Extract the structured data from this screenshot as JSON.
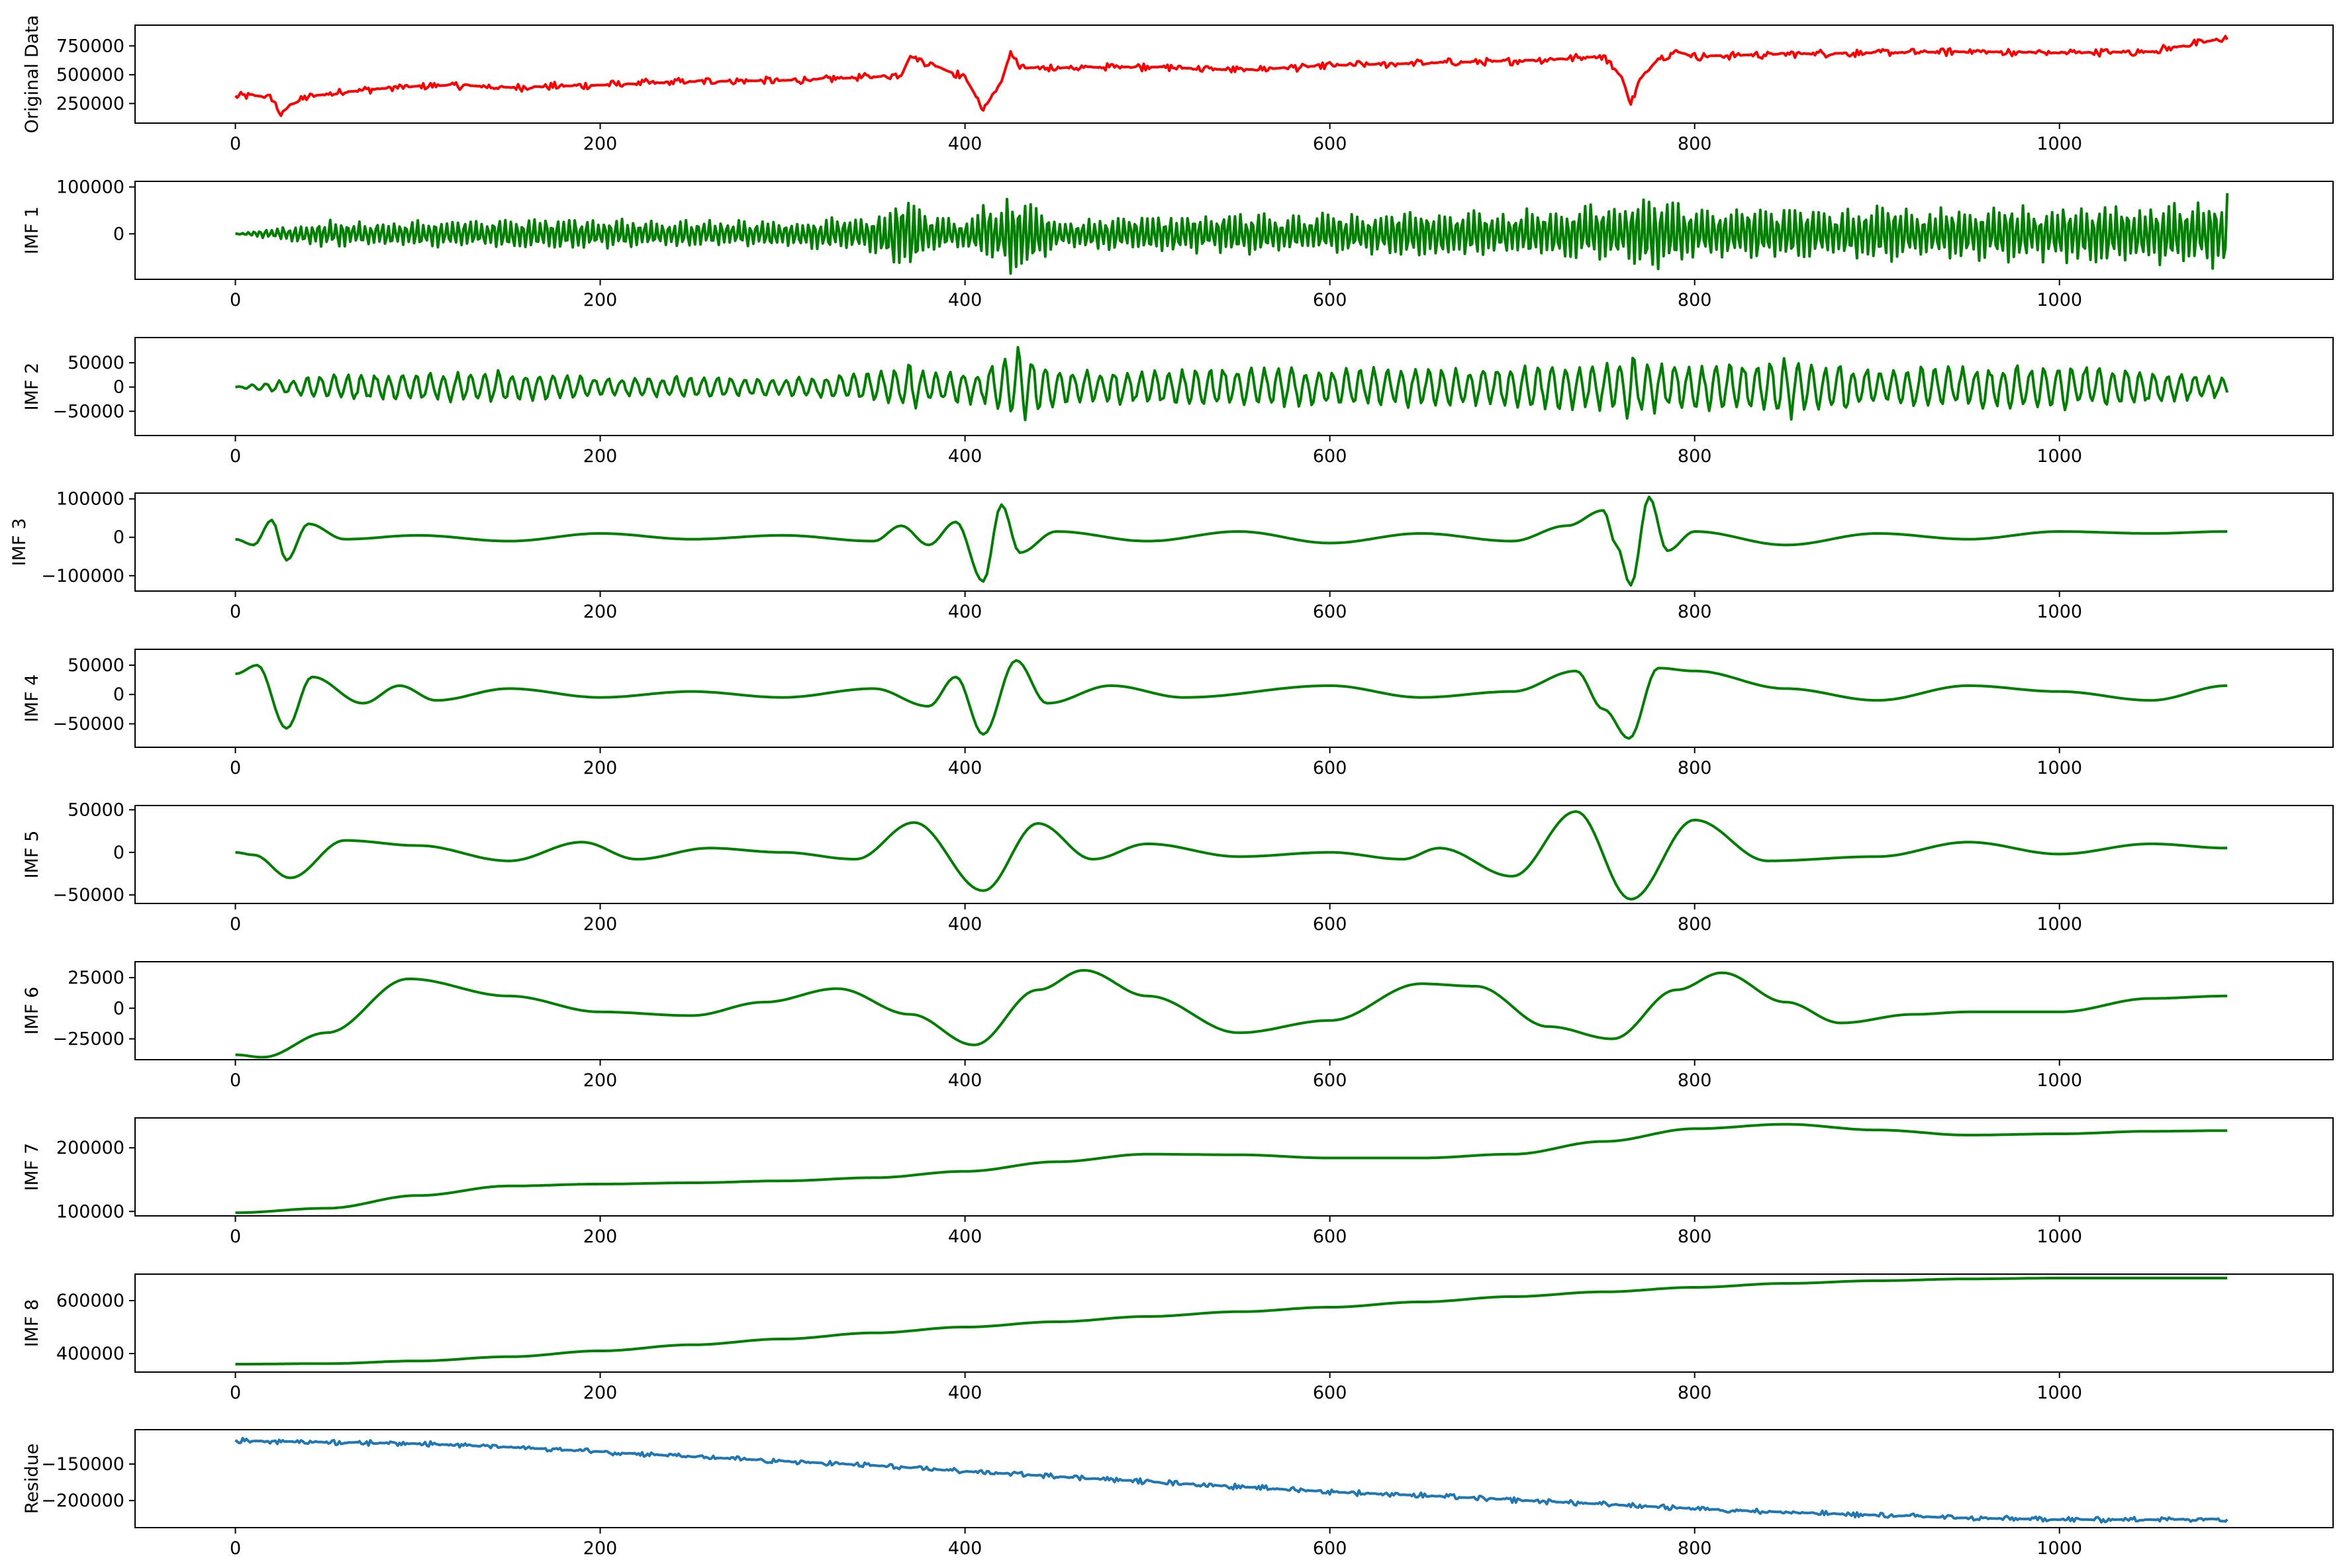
{
  "chart_data": [
    {
      "type": "line",
      "ylabel": "Original Data",
      "color": "#ff0000",
      "xlim": [
        -55,
        1150
      ],
      "ylim": [
        80000,
        930000
      ],
      "xticks": [
        0,
        200,
        400,
        600,
        800,
        1000
      ],
      "xtick_labels": [
        "0",
        "200",
        "400",
        "600",
        "800",
        "1000"
      ],
      "yticks": [
        250000,
        500000,
        750000
      ],
      "ytick_labels": [
        "250000",
        "500000",
        "750000"
      ],
      "grid": false,
      "series": [
        {
          "x": [
            0,
            10,
            20,
            25,
            30,
            40,
            60,
            80,
            100,
            120,
            150,
            200,
            250,
            300,
            350,
            365,
            370,
            400,
            410,
            420,
            425,
            430,
            450,
            500,
            550,
            600,
            650,
            700,
            730,
            750,
            760,
            765,
            770,
            780,
            790,
            800,
            850,
            900,
            950,
            1000,
            1050,
            1092
          ],
          "y": [
            310000,
            320000,
            300000,
            150000,
            240000,
            310000,
            350000,
            380000,
            400000,
            410000,
            390000,
            410000,
            440000,
            450000,
            480000,
            500000,
            660000,
            480000,
            200000,
            440000,
            700000,
            560000,
            560000,
            570000,
            540000,
            580000,
            600000,
            620000,
            640000,
            660000,
            480000,
            250000,
            450000,
            640000,
            700000,
            660000,
            680000,
            690000,
            700000,
            690000,
            700000,
            820000
          ]
        }
      ]
    },
    {
      "type": "line",
      "ylabel": "IMF 1",
      "color": "#008000",
      "xlim": [
        -55,
        1150
      ],
      "ylim": [
        -97000,
        112000
      ],
      "xticks": [
        0,
        200,
        400,
        600,
        800,
        1000
      ],
      "xtick_labels": [
        "0",
        "200",
        "400",
        "600",
        "800",
        "1000"
      ],
      "yticks": [
        0,
        100000
      ],
      "ytick_labels": [
        "0",
        "100000"
      ],
      "grid": false,
      "series": [
        {
          "x": [
            0,
            50,
            100,
            150,
            200,
            250,
            300,
            350,
            365,
            370,
            380,
            400,
            410,
            420,
            425,
            430,
            450,
            500,
            550,
            600,
            650,
            700,
            750,
            760,
            775,
            790,
            800,
            850,
            900,
            950,
            1000,
            1050,
            1075,
            1092
          ],
          "y": [
            0,
            30000,
            -30000,
            35000,
            -35000,
            30000,
            -30000,
            40000,
            -85000,
            100000,
            -40000,
            35000,
            -70000,
            50000,
            100000,
            -90000,
            35000,
            -40000,
            45000,
            -45000,
            50000,
            -55000,
            65000,
            -60000,
            90000,
            -80000,
            55000,
            -60000,
            60000,
            -60000,
            65000,
            -70000,
            70000,
            90000
          ]
        }
      ]
    },
    {
      "type": "line",
      "ylabel": "IMF 2",
      "color": "#008000",
      "xlim": [
        -55,
        1150
      ],
      "ylim": [
        -100000,
        102000
      ],
      "xticks": [
        0,
        200,
        400,
        600,
        800,
        1000
      ],
      "xtick_labels": [
        "0",
        "200",
        "400",
        "600",
        "800",
        "1000"
      ],
      "yticks": [
        -50000,
        0,
        50000
      ],
      "ytick_labels": [
        "−50000",
        "0",
        "50000"
      ],
      "grid": false,
      "series": [
        {
          "x": [
            0,
            50,
            100,
            150,
            200,
            250,
            300,
            350,
            365,
            370,
            380,
            400,
            410,
            420,
            425,
            430,
            450,
            500,
            550,
            600,
            650,
            700,
            750,
            760,
            765,
            770,
            800,
            850,
            860,
            900,
            950,
            1000,
            1050,
            1092
          ],
          "y": [
            0,
            30000,
            -30000,
            35000,
            -20000,
            25000,
            -20000,
            35000,
            -40000,
            60000,
            -30000,
            35000,
            -40000,
            60000,
            80000,
            -85000,
            40000,
            -40000,
            45000,
            -40000,
            45000,
            -45000,
            50000,
            -60000,
            -95000,
            60000,
            45000,
            70000,
            -60000,
            40000,
            -45000,
            50000,
            -40000,
            20000
          ]
        }
      ]
    },
    {
      "type": "line",
      "ylabel": "IMF 3",
      "color": "#008000",
      "xlim": [
        -55,
        1150
      ],
      "ylim": [
        -140000,
        115000
      ],
      "xticks": [
        0,
        200,
        400,
        600,
        800,
        1000
      ],
      "xtick_labels": [
        "0",
        "200",
        "400",
        "600",
        "800",
        "1000"
      ],
      "yticks": [
        -100000,
        0,
        100000
      ],
      "ytick_labels": [
        "−100000",
        "0",
        "100000"
      ],
      "grid": false,
      "series": [
        {
          "x": [
            0,
            10,
            20,
            28,
            40,
            60,
            100,
            150,
            200,
            250,
            300,
            350,
            365,
            380,
            395,
            410,
            420,
            430,
            450,
            500,
            550,
            600,
            650,
            700,
            730,
            750,
            757,
            765,
            775,
            785,
            800,
            850,
            900,
            950,
            1000,
            1050,
            1092
          ],
          "y": [
            -5000,
            -20000,
            45000,
            -60000,
            35000,
            -5000,
            5000,
            -10000,
            10000,
            -5000,
            5000,
            -10000,
            30000,
            -20000,
            40000,
            -115000,
            85000,
            -40000,
            15000,
            -10000,
            15000,
            -15000,
            10000,
            -10000,
            30000,
            70000,
            -20000,
            -125000,
            105000,
            -35000,
            15000,
            -20000,
            10000,
            -5000,
            15000,
            10000,
            15000
          ]
        }
      ]
    },
    {
      "type": "line",
      "ylabel": "IMF 4",
      "color": "#008000",
      "xlim": [
        -55,
        1150
      ],
      "ylim": [
        -90000,
        77000
      ],
      "xticks": [
        0,
        200,
        400,
        600,
        800,
        1000
      ],
      "xtick_labels": [
        "0",
        "200",
        "400",
        "600",
        "800",
        "1000"
      ],
      "yticks": [
        -50000,
        0,
        50000
      ],
      "ytick_labels": [
        "−50000",
        "0",
        "50000"
      ],
      "grid": false,
      "series": [
        {
          "x": [
            0,
            12,
            28,
            42,
            70,
            90,
            110,
            150,
            200,
            250,
            300,
            350,
            380,
            395,
            410,
            428,
            445,
            480,
            520,
            600,
            650,
            700,
            735,
            750,
            764,
            780,
            800,
            850,
            900,
            950,
            1000,
            1050,
            1092
          ],
          "y": [
            35000,
            50000,
            -58000,
            30000,
            -15000,
            15000,
            -10000,
            10000,
            -5000,
            5000,
            -5000,
            10000,
            -20000,
            30000,
            -68000,
            58000,
            -15000,
            15000,
            -5000,
            15000,
            -5000,
            5000,
            40000,
            -25000,
            -75000,
            45000,
            40000,
            10000,
            -10000,
            15000,
            5000,
            -10000,
            15000
          ]
        }
      ]
    },
    {
      "type": "line",
      "ylabel": "IMF 5",
      "color": "#008000",
      "xlim": [
        -55,
        1150
      ],
      "ylim": [
        -60000,
        55000
      ],
      "xticks": [
        0,
        200,
        400,
        600,
        800,
        1000
      ],
      "xtick_labels": [
        "0",
        "200",
        "400",
        "600",
        "800",
        "1000"
      ],
      "yticks": [
        -50000,
        0,
        50000
      ],
      "ytick_labels": [
        "−50000",
        "0",
        "50000"
      ],
      "grid": false,
      "series": [
        {
          "x": [
            0,
            10,
            30,
            60,
            100,
            150,
            190,
            220,
            260,
            300,
            340,
            372,
            410,
            440,
            470,
            500,
            550,
            600,
            640,
            660,
            700,
            735,
            765,
            800,
            840,
            900,
            950,
            1000,
            1050,
            1092
          ],
          "y": [
            0,
            -3000,
            -30000,
            14000,
            8000,
            -10000,
            12000,
            -8000,
            5000,
            0,
            -8000,
            35000,
            -45000,
            34000,
            -8000,
            10000,
            -5000,
            0,
            -8000,
            5000,
            -28000,
            48000,
            -55000,
            38000,
            -10000,
            -5000,
            12000,
            -2000,
            10000,
            5000
          ]
        }
      ]
    },
    {
      "type": "line",
      "ylabel": "IMF 6",
      "color": "#008000",
      "xlim": [
        -55,
        1150
      ],
      "ylim": [
        -42000,
        38000
      ],
      "xticks": [
        0,
        200,
        400,
        600,
        800,
        1000
      ],
      "xtick_labels": [
        "0",
        "200",
        "400",
        "600",
        "800",
        "1000"
      ],
      "yticks": [
        -25000,
        0,
        25000
      ],
      "ytick_labels": [
        "−25000",
        "0",
        "25000"
      ],
      "grid": false,
      "series": [
        {
          "x": [
            0,
            15,
            50,
            95,
            150,
            200,
            250,
            290,
            330,
            370,
            405,
            440,
            465,
            500,
            550,
            600,
            650,
            680,
            720,
            755,
            790,
            815,
            850,
            880,
            920,
            950,
            1000,
            1050,
            1092
          ],
          "y": [
            -38000,
            -40000,
            -20000,
            24000,
            10000,
            -3000,
            -6000,
            5000,
            16000,
            -5000,
            -30000,
            15000,
            31000,
            10000,
            -20000,
            -10000,
            20000,
            18000,
            -15000,
            -25000,
            15000,
            29000,
            5000,
            -12000,
            -5000,
            -3000,
            -3000,
            8000,
            10000
          ]
        }
      ]
    },
    {
      "type": "line",
      "ylabel": "IMF 7",
      "color": "#008000",
      "xlim": [
        -55,
        1150
      ],
      "ylim": [
        93000,
        247000
      ],
      "xticks": [
        0,
        200,
        400,
        600,
        800,
        1000
      ],
      "xtick_labels": [
        "0",
        "200",
        "400",
        "600",
        "800",
        "1000"
      ],
      "yticks": [
        100000,
        200000
      ],
      "ytick_labels": [
        "100000",
        "200000"
      ],
      "grid": false,
      "series": [
        {
          "x": [
            0,
            50,
            100,
            150,
            200,
            250,
            300,
            350,
            400,
            450,
            500,
            550,
            600,
            650,
            700,
            750,
            800,
            850,
            900,
            950,
            1000,
            1050,
            1092
          ],
          "y": [
            98000,
            105000,
            125000,
            140000,
            143000,
            145000,
            148000,
            153000,
            163000,
            178000,
            190000,
            189000,
            184000,
            184000,
            190000,
            210000,
            230000,
            237000,
            228000,
            220000,
            222000,
            226000,
            227000
          ]
        }
      ]
    },
    {
      "type": "line",
      "ylabel": "IMF 8",
      "color": "#008000",
      "xlim": [
        -55,
        1150
      ],
      "ylim": [
        330000,
        700000
      ],
      "xticks": [
        0,
        200,
        400,
        600,
        800,
        1000
      ],
      "xtick_labels": [
        "0",
        "200",
        "400",
        "600",
        "800",
        "1000"
      ],
      "yticks": [
        400000,
        600000
      ],
      "ytick_labels": [
        "400000",
        "600000"
      ],
      "grid": false,
      "series": [
        {
          "x": [
            0,
            50,
            100,
            150,
            200,
            250,
            300,
            350,
            400,
            450,
            500,
            550,
            600,
            650,
            700,
            750,
            800,
            850,
            900,
            950,
            1000,
            1050,
            1092
          ],
          "y": [
            360000,
            362000,
            372000,
            388000,
            410000,
            433000,
            455000,
            478000,
            500000,
            520000,
            540000,
            558000,
            575000,
            595000,
            615000,
            633000,
            650000,
            665000,
            675000,
            682000,
            685000,
            685000,
            685000
          ]
        }
      ]
    },
    {
      "type": "line",
      "ylabel": "Residue",
      "color": "#1f77b4",
      "xlim": [
        -55,
        1150
      ],
      "ylim": [
        -237000,
        -103000
      ],
      "xticks": [
        0,
        200,
        400,
        600,
        800,
        1000
      ],
      "xtick_labels": [
        "0",
        "200",
        "400",
        "600",
        "800",
        "1000"
      ],
      "yticks": [
        -200000,
        -150000
      ],
      "ytick_labels": [
        "−200000",
        "−150000"
      ],
      "grid": false,
      "series": [
        {
          "x": [
            0,
            50,
            100,
            150,
            200,
            250,
            300,
            350,
            400,
            450,
            500,
            550,
            600,
            650,
            700,
            750,
            800,
            850,
            900,
            950,
            1000,
            1050,
            1092
          ],
          "y": [
            -118000,
            -120000,
            -122000,
            -127000,
            -133000,
            -140000,
            -146000,
            -152000,
            -160000,
            -167000,
            -174000,
            -181000,
            -188000,
            -193000,
            -199000,
            -205000,
            -211000,
            -216000,
            -220000,
            -224000,
            -226000,
            -226000,
            -225000
          ]
        }
      ]
    }
  ]
}
